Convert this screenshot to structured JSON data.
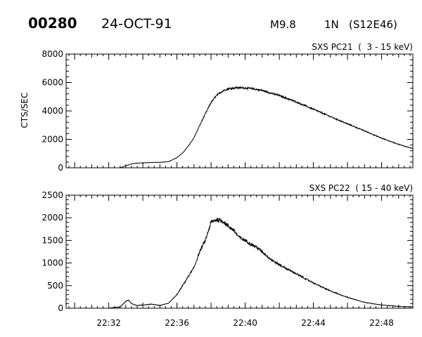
{
  "header": {
    "event_id": "00280",
    "date": "24-OCT-91",
    "goes_class": "M9.8",
    "importance": "1N",
    "location": "(S12E46)"
  },
  "chart_data": [
    {
      "type": "line",
      "title": "SXS PC21  (  3 - 15 keV)",
      "ylabel": "CTS/SEC",
      "xlabel": "",
      "xlim": [
        "22:29:30",
        "22:49:50"
      ],
      "ylim": [
        0,
        8000
      ],
      "yticks": [
        0,
        2000,
        4000,
        6000,
        8000
      ],
      "xticks": [
        "22:32",
        "22:36",
        "22:40",
        "22:44",
        "22:48"
      ],
      "noise": 0.012,
      "series": [
        {
          "x": [
            "22:30:00",
            "22:31:00",
            "22:32:00",
            "22:32:40",
            "22:33:00",
            "22:33:20",
            "22:33:40",
            "22:34:00",
            "22:34:30",
            "22:35:00",
            "22:35:30",
            "22:36:00",
            "22:36:20",
            "22:36:40",
            "22:37:00",
            "22:37:20",
            "22:37:40",
            "22:38:00",
            "22:38:20",
            "22:38:40",
            "22:39:00",
            "22:39:30",
            "22:40:00",
            "22:40:30",
            "22:41:00",
            "22:42:00",
            "22:43:00",
            "22:44:00",
            "22:45:00",
            "22:46:00",
            "22:47:00",
            "22:48:00",
            "22:49:00",
            "22:49:50"
          ],
          "y": [
            0,
            0,
            0,
            0,
            140,
            270,
            330,
            340,
            370,
            380,
            430,
            720,
            1040,
            1530,
            2120,
            2980,
            3800,
            4600,
            5100,
            5400,
            5560,
            5640,
            5620,
            5550,
            5440,
            5080,
            4630,
            4120,
            3600,
            3090,
            2600,
            2080,
            1650,
            1350
          ]
        }
      ]
    },
    {
      "type": "line",
      "title": "SXS PC22  ( 15 - 40 keV)",
      "ylabel": "",
      "xlabel": "",
      "xlim": [
        "22:29:30",
        "22:49:50"
      ],
      "ylim": [
        0,
        2500
      ],
      "yticks": [
        0,
        500,
        1000,
        1500,
        2000,
        2500
      ],
      "xticks": [
        "22:32",
        "22:36",
        "22:40",
        "22:44",
        "22:48"
      ],
      "noise": 0.025,
      "series": [
        {
          "x": [
            "22:30:00",
            "22:31:00",
            "22:32:00",
            "22:32:40",
            "22:33:00",
            "22:33:10",
            "22:33:20",
            "22:33:40",
            "22:34:00",
            "22:34:30",
            "22:35:00",
            "22:35:30",
            "22:36:00",
            "22:36:20",
            "22:36:40",
            "22:37:00",
            "22:37:20",
            "22:37:40",
            "22:38:00",
            "22:38:20",
            "22:38:40",
            "22:39:00",
            "22:39:20",
            "22:39:40",
            "22:40:00",
            "22:40:20",
            "22:40:40",
            "22:41:00",
            "22:41:30",
            "22:42:00",
            "22:42:30",
            "22:43:00",
            "22:44:00",
            "22:45:00",
            "22:46:00",
            "22:47:00",
            "22:48:00",
            "22:49:00",
            "22:49:50"
          ],
          "y": [
            0,
            0,
            0,
            30,
            150,
            180,
            100,
            60,
            70,
            90,
            60,
            110,
            300,
            500,
            700,
            900,
            1250,
            1500,
            1900,
            1960,
            1930,
            1820,
            1720,
            1560,
            1500,
            1420,
            1350,
            1250,
            1080,
            960,
            860,
            760,
            560,
            380,
            240,
            130,
            70,
            40,
            30
          ]
        }
      ]
    }
  ]
}
